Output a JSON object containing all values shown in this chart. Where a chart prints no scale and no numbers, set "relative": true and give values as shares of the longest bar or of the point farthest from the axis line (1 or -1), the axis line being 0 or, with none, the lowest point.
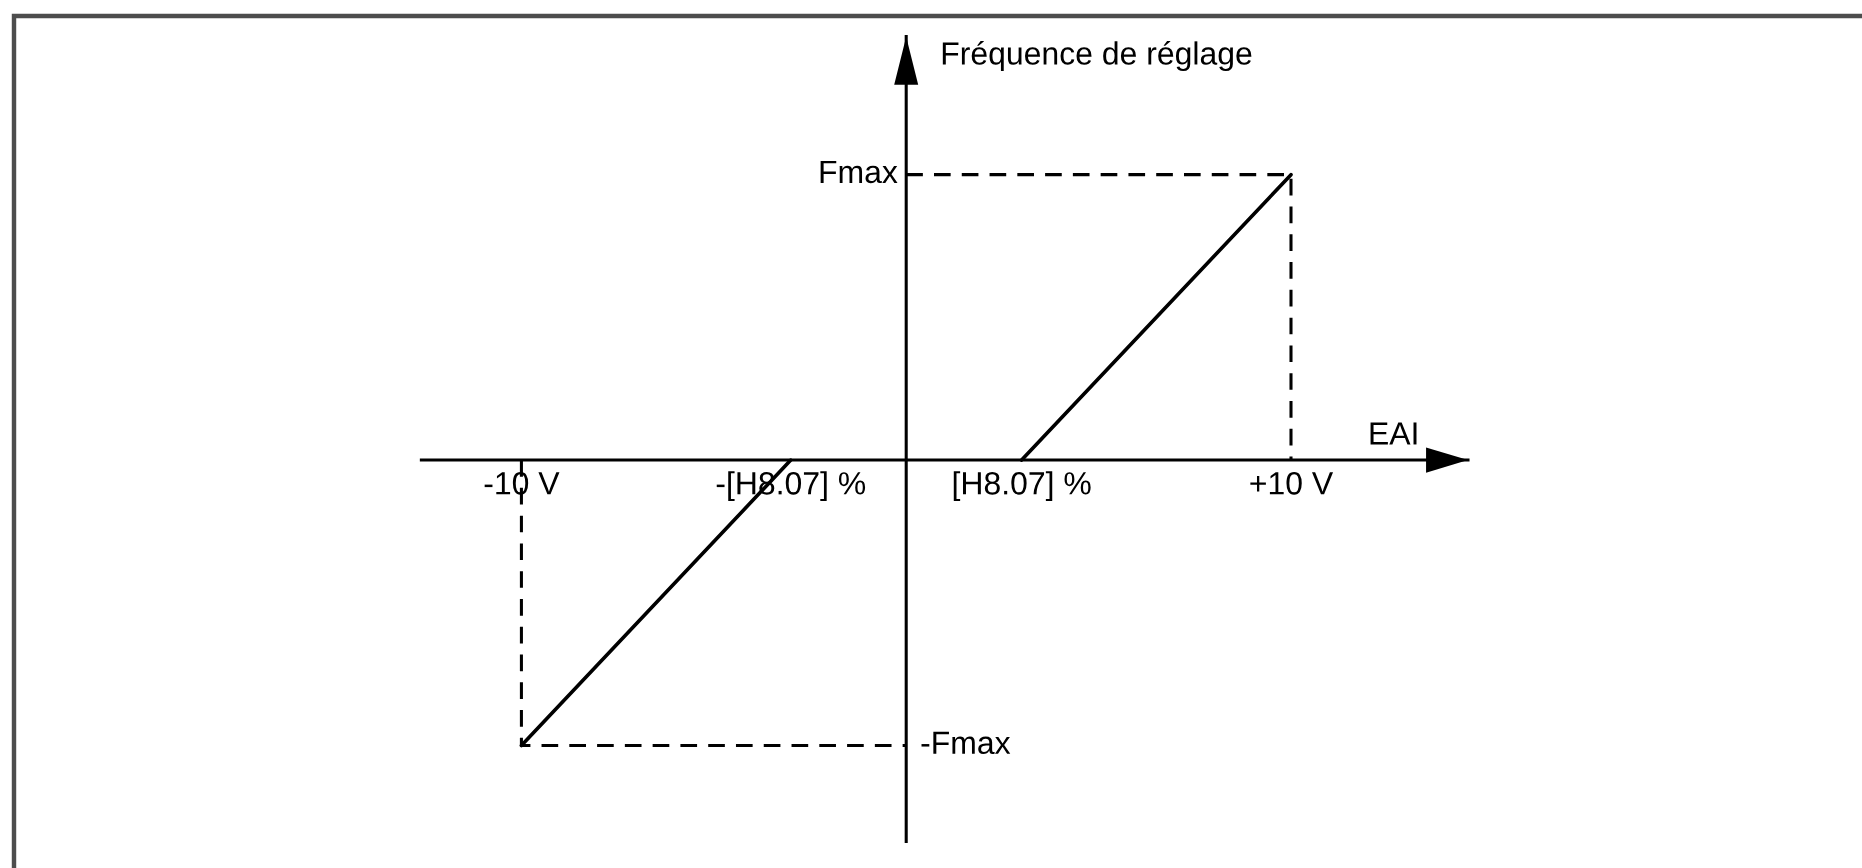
{
  "chart_data": {
    "type": "line",
    "xlabel": "EAI",
    "ylabel": "Fréquence de réglage",
    "relative": true,
    "xlim": [
      -12.6,
      14.6
    ],
    "xticks": [
      {
        "value": -10,
        "label": "-10 V"
      },
      {
        "value": -3,
        "label": "-[H8.07] %"
      },
      {
        "value": 3,
        "label": "[H8.07] %"
      },
      {
        "value": 10,
        "label": "+10 V"
      }
    ],
    "series": [
      {
        "x": [
          -10,
          -3
        ],
        "values": [
          -1,
          0
        ],
        "color": "#000000"
      },
      {
        "x": [
          3,
          10
        ],
        "values": [
          0,
          1
        ],
        "color": "#000000"
      },
      {
        "x": [
          0,
          10,
          10
        ],
        "values": [
          1,
          1,
          0
        ],
        "color": "#000000",
        "line_style": "dashed"
      },
      {
        "x": [
          -10,
          -10,
          0
        ],
        "values": [
          0,
          -1,
          -1
        ],
        "color": "#000000",
        "line_style": "dashed"
      }
    ],
    "annotations": [
      {
        "text": "Fmax",
        "x": 0,
        "y": 1
      },
      {
        "text": "-Fmax",
        "x": 0,
        "y": -1
      }
    ]
  }
}
